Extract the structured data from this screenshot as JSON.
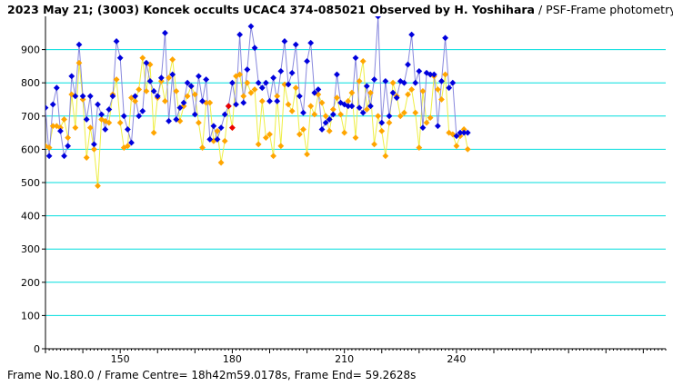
{
  "chart_data": {
    "type": "line",
    "title_main": "2023 May 21; (3003) Koncek occults UCAC4 374-085021 Observed by H. Yoshihara",
    "title_sub": " / PSF-Frame photometry /",
    "xlabel": "",
    "ylabel": "",
    "xlim": [
      130,
      296
    ],
    "ylim": [
      0,
      1000
    ],
    "x_ticks": [
      150,
      180,
      210,
      240
    ],
    "y_ticks": [
      0,
      100,
      200,
      300,
      400,
      500,
      600,
      700,
      800,
      900
    ],
    "grid": true,
    "footer": "Frame No.180.0 / Frame Centre= 18h42m59.0178s,  Frame End= 59.2628s",
    "colors": {
      "series_blue_line": "#8888dd",
      "series_blue_marker": "#0000dd",
      "series_orange_line": "#eeee44",
      "series_orange_marker": "#ffa500",
      "highlight_marker": "#ee0000",
      "grid": "#00dddd",
      "axis": "#000000"
    },
    "highlight": [
      {
        "x": 179,
        "y": 730
      },
      {
        "x": 180,
        "y": 665
      }
    ],
    "series": [
      {
        "name": "target",
        "role": "blue",
        "x": [
          126,
          127,
          128,
          129,
          130,
          131,
          132,
          133,
          134,
          135,
          136,
          137,
          138,
          139,
          140,
          141,
          142,
          143,
          144,
          145,
          146,
          147,
          148,
          149,
          150,
          151,
          152,
          153,
          154,
          155,
          156,
          157,
          158,
          159,
          160,
          161,
          162,
          163,
          164,
          165,
          166,
          167,
          168,
          169,
          170,
          171,
          172,
          173,
          174,
          175,
          176,
          177,
          178,
          179,
          180,
          181,
          182,
          183,
          184,
          185,
          186,
          187,
          188,
          189,
          190,
          191,
          192,
          193,
          194,
          195,
          196,
          197,
          198,
          199,
          200,
          201,
          202,
          203,
          204,
          205,
          206,
          207,
          208,
          209,
          210,
          211,
          212,
          213,
          214,
          215,
          216,
          217,
          218,
          219,
          220,
          221,
          222,
          223,
          224,
          225,
          226,
          227,
          228,
          229,
          230,
          231,
          232,
          233,
          234,
          235,
          236,
          237,
          238,
          239,
          240,
          241,
          242,
          243
        ],
        "values": [
          680,
          725,
          600,
          590,
          725,
          580,
          735,
          785,
          655,
          580,
          610,
          820,
          760,
          915,
          760,
          690,
          760,
          615,
          735,
          705,
          660,
          720,
          760,
          925,
          875,
          700,
          660,
          620,
          760,
          700,
          715,
          860,
          805,
          775,
          760,
          815,
          950,
          685,
          825,
          690,
          725,
          740,
          800,
          790,
          705,
          820,
          745,
          810,
          630,
          670,
          630,
          665,
          705,
          730,
          800,
          735,
          945,
          740,
          840,
          970,
          905,
          800,
          785,
          800,
          745,
          815,
          745,
          835,
          925,
          795,
          830,
          915,
          760,
          710,
          865,
          920,
          770,
          780,
          660,
          680,
          690,
          705,
          825,
          740,
          735,
          730,
          730,
          875,
          725,
          710,
          790,
          730,
          810,
          1000,
          680,
          805,
          700,
          770,
          755,
          805,
          800,
          855,
          945,
          800,
          835,
          665,
          830,
          825,
          825,
          670,
          805,
          935,
          785,
          800,
          640,
          650,
          650,
          650
        ]
      },
      {
        "name": "comparison",
        "role": "orange",
        "x": [
          126,
          127,
          128,
          129,
          130,
          131,
          132,
          133,
          134,
          135,
          136,
          137,
          138,
          139,
          140,
          141,
          142,
          143,
          144,
          145,
          146,
          147,
          148,
          149,
          150,
          151,
          152,
          153,
          154,
          155,
          156,
          157,
          158,
          159,
          160,
          161,
          162,
          163,
          164,
          165,
          166,
          167,
          168,
          169,
          170,
          171,
          172,
          173,
          174,
          175,
          176,
          177,
          178,
          179,
          180,
          181,
          182,
          183,
          184,
          185,
          186,
          187,
          188,
          189,
          190,
          191,
          192,
          193,
          194,
          195,
          196,
          197,
          198,
          199,
          200,
          201,
          202,
          203,
          204,
          205,
          206,
          207,
          208,
          209,
          210,
          211,
          212,
          213,
          214,
          215,
          216,
          217,
          218,
          219,
          220,
          221,
          222,
          223,
          224,
          225,
          226,
          227,
          228,
          229,
          230,
          231,
          232,
          233,
          234,
          235,
          236,
          237,
          238,
          239,
          240,
          241,
          242,
          243
        ],
        "values": [
          710,
          760,
          650,
          590,
          610,
          605,
          670,
          670,
          665,
          690,
          635,
          765,
          665,
          860,
          750,
          575,
          665,
          600,
          490,
          690,
          685,
          680,
          765,
          810,
          680,
          605,
          610,
          755,
          745,
          780,
          875,
          775,
          855,
          650,
          755,
          805,
          745,
          815,
          870,
          775,
          685,
          730,
          760,
          790,
          765,
          680,
          605,
          740,
          740,
          625,
          655,
          560,
          625,
          730,
          665,
          820,
          825,
          760,
          800,
          770,
          780,
          615,
          745,
          635,
          645,
          580,
          760,
          610,
          795,
          735,
          715,
          785,
          645,
          660,
          585,
          730,
          705,
          765,
          740,
          700,
          655,
          720,
          755,
          705,
          650,
          745,
          770,
          635,
          805,
          865,
          720,
          770,
          615,
          700,
          655,
          580,
          680,
          800,
          760,
          700,
          710,
          765,
          780,
          710,
          605,
          775,
          680,
          695,
          820,
          780,
          750,
          825,
          650,
          645,
          610,
          640,
          660,
          600
        ]
      }
    ]
  }
}
